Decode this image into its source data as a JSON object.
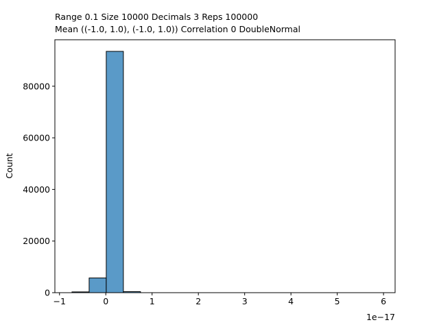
{
  "chart_data": {
    "type": "bar",
    "title_lines": [
      "Range 0.1   Size 10000   Decimals 3   Reps 100000",
      "Mean ((-1.0, 1.0), (-1.0, 1.0))  Correlation 0  DoubleNormal"
    ],
    "xlabel": "",
    "ylabel": "Count",
    "x_offset_text": "1e−17",
    "x_ticks": [
      -1,
      0,
      1,
      2,
      3,
      4,
      5,
      6
    ],
    "x_tick_labels": [
      "−1",
      "0",
      "1",
      "2",
      "3",
      "4",
      "5",
      "6"
    ],
    "y_ticks": [
      0,
      20000,
      40000,
      60000,
      80000
    ],
    "y_tick_labels": [
      "0",
      "20000",
      "40000",
      "60000",
      "80000"
    ],
    "xlim": [
      -1.1,
      6.25
    ],
    "ylim": [
      0,
      98000
    ],
    "bin_width": 0.37,
    "bars": [
      {
        "x0": -0.73,
        "value": 300
      },
      {
        "x0": -0.36,
        "value": 5700
      },
      {
        "x0": 0.01,
        "value": 93500
      },
      {
        "x0": 0.38,
        "value": 400
      }
    ],
    "bar_color": "#5a9ac8",
    "grid": false
  }
}
